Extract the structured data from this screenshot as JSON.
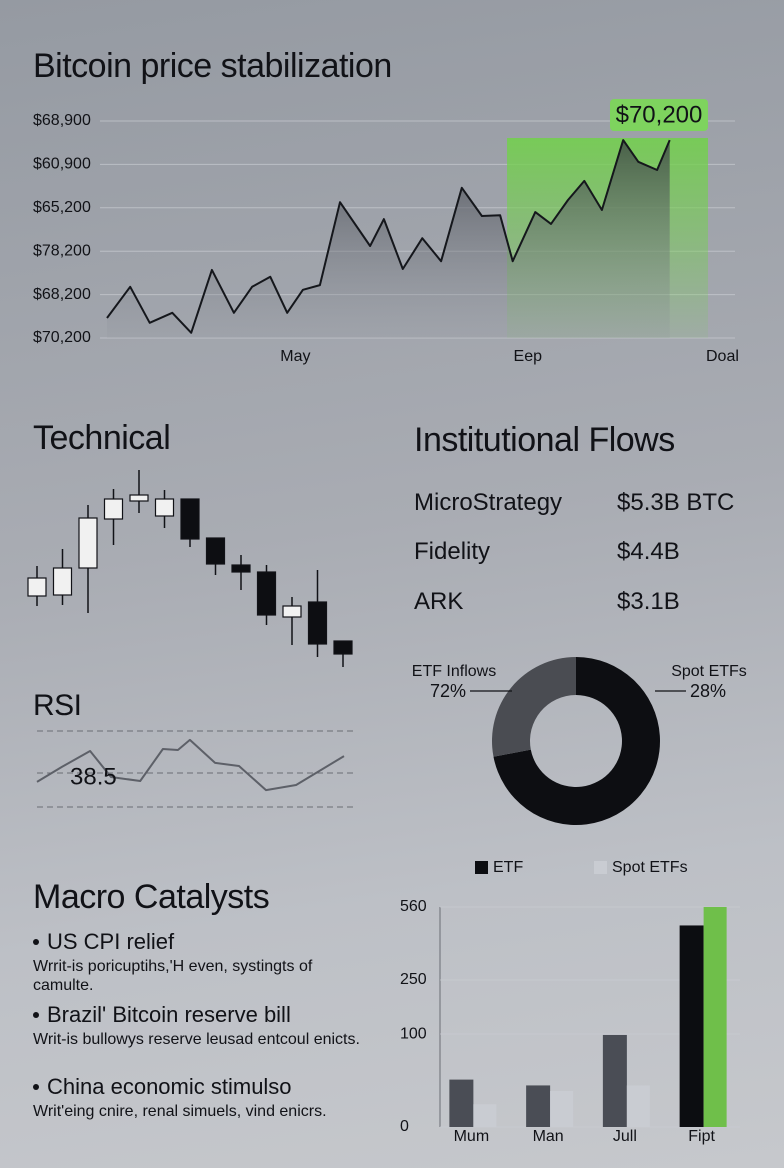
{
  "chart_data": [
    {
      "type": "line",
      "title": "Bitcoin price stabilization",
      "color": "#15171c",
      "area": true,
      "x": [
        0,
        3.7,
        6.8,
        10.4,
        13.4,
        16.7,
        20.2,
        23.1,
        26,
        28.7,
        31.2,
        33.9,
        37.1,
        41.9,
        44.1,
        47.1,
        50.2,
        53.2,
        56.5,
        59.7,
        62.6,
        64.6,
        68.2,
        70.7,
        73.4,
        76,
        78.8,
        82.2,
        84.6,
        87.6,
        89.6
      ],
      "values": [
        0.46,
        1.18,
        0.35,
        0.58,
        0.12,
        1.57,
        0.58,
        1.18,
        1.41,
        0.58,
        1.11,
        1.22,
        3.13,
        2.12,
        2.74,
        1.59,
        2.3,
        1.77,
        3.46,
        2.81,
        2.83,
        1.77,
        2.9,
        2.63,
        3.18,
        3.62,
        2.95,
        4.56,
        4.06,
        3.87,
        4.56
      ],
      "xlim": [
        0,
        100
      ],
      "xticks": [
        {
          "value": 30,
          "label": "May"
        },
        {
          "value": 67,
          "label": "Eep"
        },
        {
          "value": 98,
          "label": "Doal"
        }
      ],
      "ylim": [
        0,
        5
      ],
      "yticks": [
        {
          "value": 0,
          "label": "$70,200"
        },
        {
          "value": 1,
          "label": "$68,200"
        },
        {
          "value": 2,
          "label": "$78,200"
        },
        {
          "value": 3,
          "label": "$65,200"
        },
        {
          "value": 4,
          "label": "$60,900"
        },
        {
          "value": 5,
          "label": "$68,900"
        }
      ],
      "grid": true,
      "highlight": {
        "x": [
          63.7,
          95.7
        ],
        "label": "$70,200",
        "color": "#7ed35e"
      }
    },
    {
      "type": "candlestick",
      "title": "Technical",
      "up_color": "#f1f1f1",
      "down_color": "#0d0e12",
      "open": [
        84,
        85,
        112,
        161,
        179,
        164,
        181,
        142,
        115,
        108,
        63,
        78,
        39
      ],
      "high": [
        114,
        131,
        175,
        191,
        210,
        190,
        181,
        142,
        125,
        115,
        83,
        110,
        39
      ],
      "low": [
        74,
        75,
        67,
        135,
        167,
        152,
        133,
        105,
        90,
        55,
        35,
        23,
        13
      ],
      "close": [
        102,
        112,
        162,
        181,
        185,
        181,
        141,
        116,
        108,
        65,
        74,
        36,
        26
      ],
      "ylim": [
        0,
        220
      ]
    },
    {
      "type": "line",
      "title": "RSI",
      "color": "#5d6068",
      "annotation": "38.5",
      "x": [
        0,
        8.1,
        17.3,
        24.1,
        33.6,
        41,
        45.9,
        49.8,
        58,
        65.8,
        74.6,
        84.4,
        100
      ],
      "values": [
        43.2,
        51.1,
        59.5,
        45.8,
        43.7,
        60.5,
        60,
        65.3,
        53.2,
        51.6,
        38.9,
        41.6,
        56.8
      ],
      "xlim": [
        0,
        100
      ],
      "ylim": [
        0,
        100
      ]
    },
    {
      "type": "pie",
      "categories": [
        "ETF Inflows",
        "Spot ETFs"
      ],
      "values": [
        72,
        28
      ],
      "value_labels": [
        "72%",
        "28%"
      ],
      "colors": [
        "#0d0e12",
        "#4a4c52"
      ],
      "donut": true
    },
    {
      "type": "bar",
      "categories": [
        "Mum",
        "Man",
        "Jull",
        "Fipt"
      ],
      "scale": "sqrt",
      "ylim": [
        0,
        560
      ],
      "yticks": [
        0,
        100,
        250,
        560
      ],
      "grid": true,
      "series": [
        {
          "name": "ETF",
          "color": "#0c0d11",
          "colors": [
            "#4a4d55",
            "#4a4d55",
            "#4a4d55",
            "#0c0d11"
          ],
          "values": [
            26,
            20,
            98,
            470
          ]
        },
        {
          "name": "Spot ETFs",
          "color": "#c9ccd2",
          "colors": [
            "#c9ccd2",
            "#c9ccd2",
            "#c9ccd2",
            "#6fbf4a"
          ],
          "values": [
            6,
            15,
            20,
            560
          ]
        }
      ]
    }
  ],
  "institutional_flows": {
    "title": "Institutional Flows",
    "rows": [
      [
        "MicroStrategy",
        "$5.3B BTC"
      ],
      [
        "Fidelity",
        "$4.4B"
      ],
      [
        "ARK",
        "$3.1B"
      ]
    ]
  },
  "macro": {
    "title": "Macro Catalysts",
    "items": [
      {
        "title": "US CPI relief",
        "text": "Wrrit-is poricuptihs,'H even, systingts of camulte."
      },
      {
        "title": "Brazil' Bitcoin reserve bill",
        "text": "Writ-is bullowys reserve leusad entcoul enicts."
      },
      {
        "title": "China economic stimulso",
        "text": "Writ'eing cnire, renal simuels, vind enicrs."
      }
    ]
  }
}
